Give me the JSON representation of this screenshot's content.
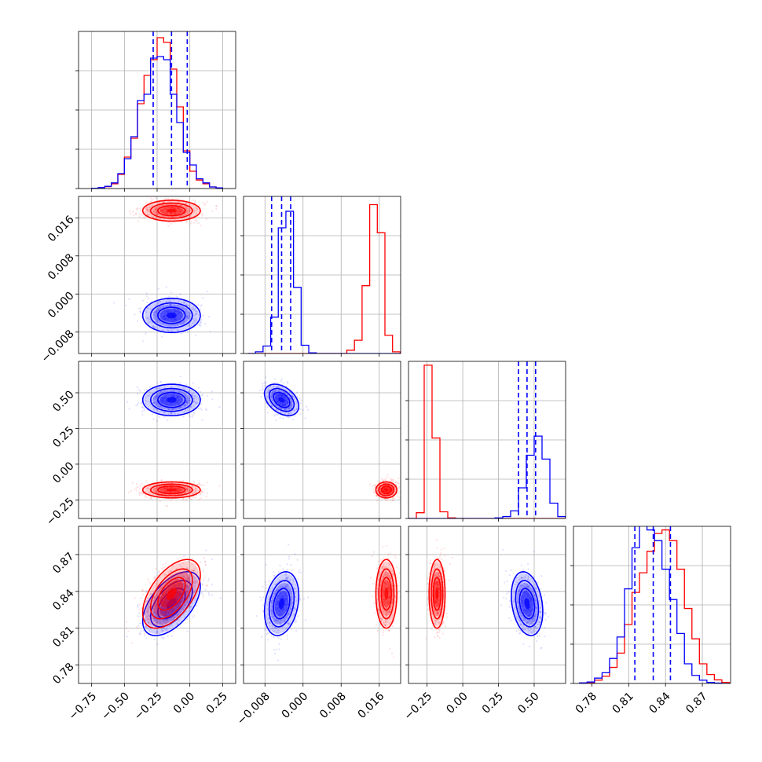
{
  "chart_data": {
    "type": "corner",
    "title": "",
    "grid": true,
    "series_colors": [
      "#0000ff",
      "#ff0000"
    ],
    "parameters": [
      {
        "range": [
          -0.85,
          0.35
        ],
        "ticks": [
          -0.75,
          -0.5,
          -0.25,
          0.0,
          0.25
        ],
        "tick_labels": [
          "−0.75",
          "−0.50",
          "−0.25",
          "0.00",
          "0.25"
        ]
      },
      {
        "range": [
          -0.0125,
          0.0205
        ],
        "ticks": [
          -0.008,
          0.0,
          0.008,
          0.016
        ],
        "tick_labels": [
          "−0.008",
          "0.000",
          "0.008",
          "0.016"
        ]
      },
      {
        "range": [
          -0.38,
          0.72
        ],
        "ticks": [
          -0.25,
          0.0,
          0.25,
          0.5
        ],
        "tick_labels": [
          "−0.25",
          "0.00",
          "0.25",
          "0.50"
        ]
      },
      {
        "range": [
          0.765,
          0.893
        ],
        "ticks": [
          0.78,
          0.81,
          0.84,
          0.87
        ],
        "tick_labels": [
          "0.78",
          "0.81",
          "0.84",
          "0.87"
        ]
      }
    ],
    "series": [
      {
        "color": "#0000ff",
        "mean": [
          -0.14,
          -0.0045,
          0.45,
          0.83
        ],
        "std": [
          0.11,
          0.0018,
          0.055,
          0.013
        ]
      },
      {
        "color": "#ff0000",
        "mean": [
          -0.14,
          0.0175,
          -0.18,
          0.838
        ],
        "std": [
          0.11,
          0.0011,
          0.028,
          0.014
        ]
      }
    ],
    "quantile_lines": [
      [
        -0.28,
        -0.14,
        -0.02
      ],
      [
        -0.0066,
        -0.0045,
        -0.0026
      ],
      [
        0.39,
        0.45,
        0.51
      ],
      [
        0.815,
        0.83,
        0.844
      ]
    ],
    "correlations": [
      {
        "i": 3,
        "j": 0,
        "blue": 0.55,
        "red": 0.55
      },
      {
        "i": 3,
        "j": 1,
        "blue": 0.25,
        "red": 0.0
      },
      {
        "i": 3,
        "j": 2,
        "blue": -0.25,
        "red": 0.0
      },
      {
        "i": 2,
        "j": 1,
        "blue": -0.4,
        "red": 0.0
      }
    ],
    "histograms": [
      {
        "bins": [
          -0.75,
          -0.7,
          -0.65,
          -0.6,
          -0.55,
          -0.5,
          -0.45,
          -0.4,
          -0.35,
          -0.3,
          -0.25,
          -0.2,
          -0.15,
          -0.1,
          -0.05,
          0.0,
          0.05,
          0.1,
          0.15,
          0.2,
          0.25
        ],
        "blue": [
          2,
          6,
          14,
          36,
          95,
          190,
          330,
          560,
          600,
          830,
          840,
          820,
          600,
          420,
          230,
          150,
          62,
          36,
          10,
          4
        ],
        "red": [
          2,
          5,
          12,
          30,
          90,
          200,
          320,
          540,
          720,
          820,
          960,
          930,
          760,
          520,
          240,
          110,
          54,
          30,
          10,
          4
        ],
        "ymax": 1000
      },
      {
        "bins": [
          -0.0116,
          -0.01,
          -0.0084,
          -0.0068,
          -0.0052,
          -0.0036,
          -0.002,
          -0.0004,
          0.0012,
          0.0028,
          0.0044,
          0.006,
          0.0076,
          0.0092,
          0.0108,
          0.0124,
          0.014,
          0.0156,
          0.0172,
          0.0188,
          0.0204
        ],
        "blue": [
          0,
          10,
          45,
          220,
          760,
          860,
          400,
          50,
          4,
          0,
          0,
          0,
          0,
          0,
          0,
          0,
          0,
          0,
          0,
          0
        ],
        "red": [
          0,
          0,
          0,
          0,
          0,
          0,
          0,
          0,
          0,
          0,
          0,
          0,
          0,
          20,
          80,
          410,
          900,
          730,
          110,
          10
        ],
        "ymax": 950
      },
      {
        "bins": [
          -0.38,
          -0.325,
          -0.27,
          -0.215,
          -0.16,
          -0.105,
          -0.05,
          0.005,
          0.06,
          0.115,
          0.17,
          0.225,
          0.28,
          0.335,
          0.39,
          0.445,
          0.5,
          0.555,
          0.61,
          0.665,
          0.72
        ],
        "blue": [
          0,
          0,
          0,
          0,
          0,
          0,
          0,
          0,
          0,
          0,
          0,
          3,
          10,
          40,
          160,
          330,
          430,
          310,
          80,
          10
        ],
        "red": [
          0,
          30,
          800,
          420,
          35,
          3,
          0,
          0,
          0,
          0,
          0,
          0,
          0,
          0,
          0,
          0,
          0,
          0,
          0,
          0
        ],
        "ymax": 820
      },
      {
        "bins": [
          0.77,
          0.7761,
          0.7822,
          0.7883,
          0.7944,
          0.8005,
          0.8066,
          0.8127,
          0.8188,
          0.8249,
          0.831,
          0.8371,
          0.8432,
          0.8493,
          0.8554,
          0.8615,
          0.8676,
          0.8737,
          0.8798,
          0.8859,
          0.892
        ],
        "blue": [
          3,
          8,
          30,
          60,
          140,
          260,
          530,
          760,
          900,
          860,
          800,
          640,
          470,
          280,
          110,
          45,
          18,
          6,
          2,
          0
        ],
        "red": [
          2,
          5,
          18,
          40,
          90,
          170,
          330,
          510,
          620,
          740,
          840,
          860,
          800,
          640,
          420,
          250,
          110,
          50,
          20,
          6
        ],
        "ymax": 880
      }
    ]
  }
}
